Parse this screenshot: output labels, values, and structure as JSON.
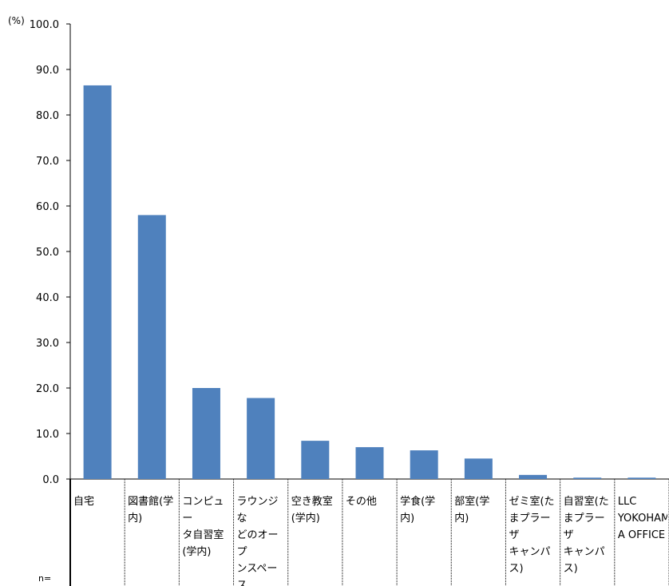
{
  "chart_data": {
    "type": "bar",
    "y_unit": "(%)",
    "ylim": [
      0,
      100
    ],
    "y_ticks": [
      "0.0",
      "10.0",
      "20.0",
      "30.0",
      "40.0",
      "50.0",
      "60.0",
      "70.0",
      "80.0",
      "90.0",
      "100.0"
    ],
    "categories": [
      "自宅",
      "図書館(学\n内)",
      "コンピュー\nタ自習室\n(学内)",
      "ラウンジな\nどのオープ\nンスペース\n(学内)",
      "空き教室\n(学内)",
      "その他",
      "学食(学\n内)",
      "部室(学\n内)",
      "ゼミ室(た\nまプラーザ\nキャンパ\nス)",
      "自習室(た\nまプラーザ\nキャンパ\nス)",
      "LLC\nYOKOHAM\nA OFFICE"
    ],
    "values": [
      86.5,
      58.0,
      20.0,
      17.8,
      8.4,
      7.0,
      6.3,
      4.5,
      0.9,
      0.3,
      0.3
    ],
    "bar_color": "#4f81bd",
    "grid": false,
    "n_label": "n="
  }
}
